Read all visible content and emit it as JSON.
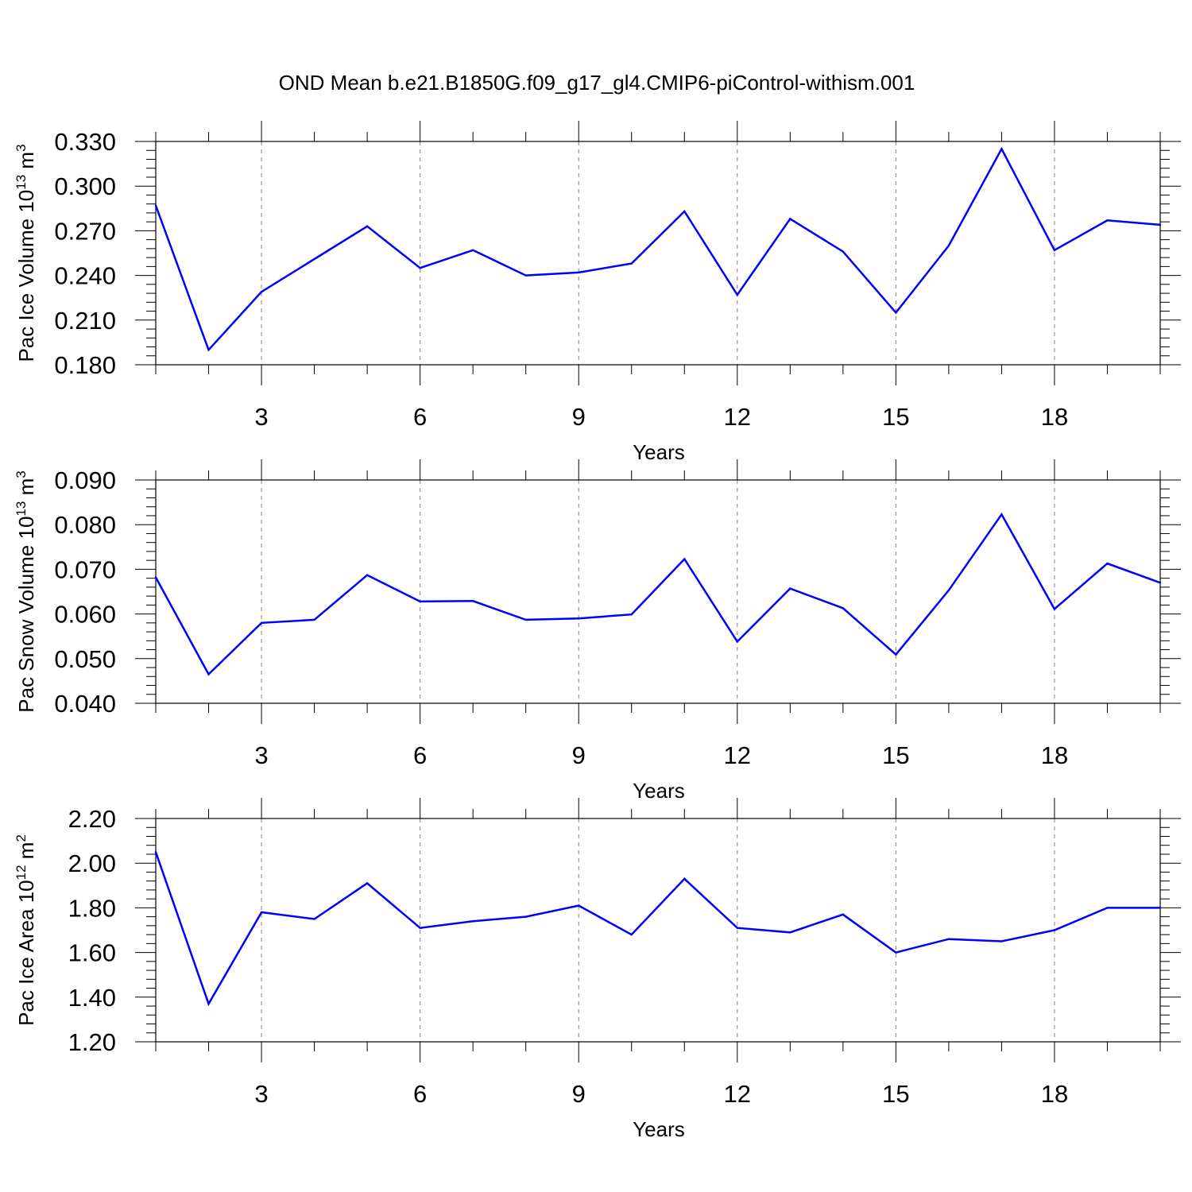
{
  "title": "OND Mean b.e21.B1850G.f09_g17_gl4.CMIP6-piControl-withism.001",
  "colors": {
    "line": "#0000ff",
    "axis": "#000000",
    "grid": "#808080"
  },
  "chart_data": [
    {
      "type": "line",
      "name": "ice-volume",
      "ylabel": {
        "main": "Pac Ice Volume 10",
        "exp": "13",
        "unit": " m",
        "unit_exp": "3"
      },
      "xlabel": "Years",
      "xlim": [
        1,
        20
      ],
      "ylim": [
        0.18,
        0.33
      ],
      "yticks": [
        "0.180",
        "0.210",
        "0.240",
        "0.270",
        "0.300",
        "0.330"
      ],
      "xticks": [
        "3",
        "6",
        "9",
        "12",
        "15",
        "18"
      ],
      "x": [
        1,
        2,
        3,
        4,
        5,
        6,
        7,
        8,
        9,
        10,
        11,
        12,
        13,
        14,
        15,
        16,
        17,
        18,
        19,
        20
      ],
      "values": [
        0.287,
        0.19,
        0.229,
        0.251,
        0.273,
        0.245,
        0.257,
        0.24,
        0.242,
        0.248,
        0.283,
        0.227,
        0.278,
        0.256,
        0.215,
        0.26,
        0.325,
        0.257,
        0.277,
        0.274
      ]
    },
    {
      "type": "line",
      "name": "snow-volume",
      "ylabel": {
        "main": "Pac Snow Volume 10",
        "exp": "13",
        "unit": " m",
        "unit_exp": "3"
      },
      "xlabel": "Years",
      "xlim": [
        1,
        20
      ],
      "ylim": [
        0.04,
        0.09
      ],
      "yticks": [
        "0.040",
        "0.050",
        "0.060",
        "0.070",
        "0.080",
        "0.090"
      ],
      "xticks": [
        "3",
        "6",
        "9",
        "12",
        "15",
        "18"
      ],
      "x": [
        1,
        2,
        3,
        4,
        5,
        6,
        7,
        8,
        9,
        10,
        11,
        12,
        13,
        14,
        15,
        16,
        17,
        18,
        19,
        20
      ],
      "values": [
        0.0682,
        0.0465,
        0.058,
        0.0587,
        0.0687,
        0.0628,
        0.0629,
        0.0587,
        0.059,
        0.0599,
        0.0723,
        0.0538,
        0.0657,
        0.0613,
        0.0509,
        0.0653,
        0.0823,
        0.0611,
        0.0713,
        0.067
      ]
    },
    {
      "type": "line",
      "name": "ice-area",
      "ylabel": {
        "main": "Pac Ice Area 10",
        "exp": "12",
        "unit": " m",
        "unit_exp": "2"
      },
      "xlabel": "Years",
      "xlim": [
        1,
        20
      ],
      "ylim": [
        1.2,
        2.2
      ],
      "yticks": [
        "1.20",
        "1.40",
        "1.60",
        "1.80",
        "2.00",
        "2.20"
      ],
      "xticks": [
        "3",
        "6",
        "9",
        "12",
        "15",
        "18"
      ],
      "x": [
        1,
        2,
        3,
        4,
        5,
        6,
        7,
        8,
        9,
        10,
        11,
        12,
        13,
        14,
        15,
        16,
        17,
        18,
        19,
        20
      ],
      "values": [
        2.05,
        1.37,
        1.78,
        1.75,
        1.91,
        1.71,
        1.74,
        1.76,
        1.81,
        1.68,
        1.93,
        1.71,
        1.69,
        1.77,
        1.6,
        1.66,
        1.65,
        1.7,
        1.8,
        1.8
      ]
    }
  ]
}
